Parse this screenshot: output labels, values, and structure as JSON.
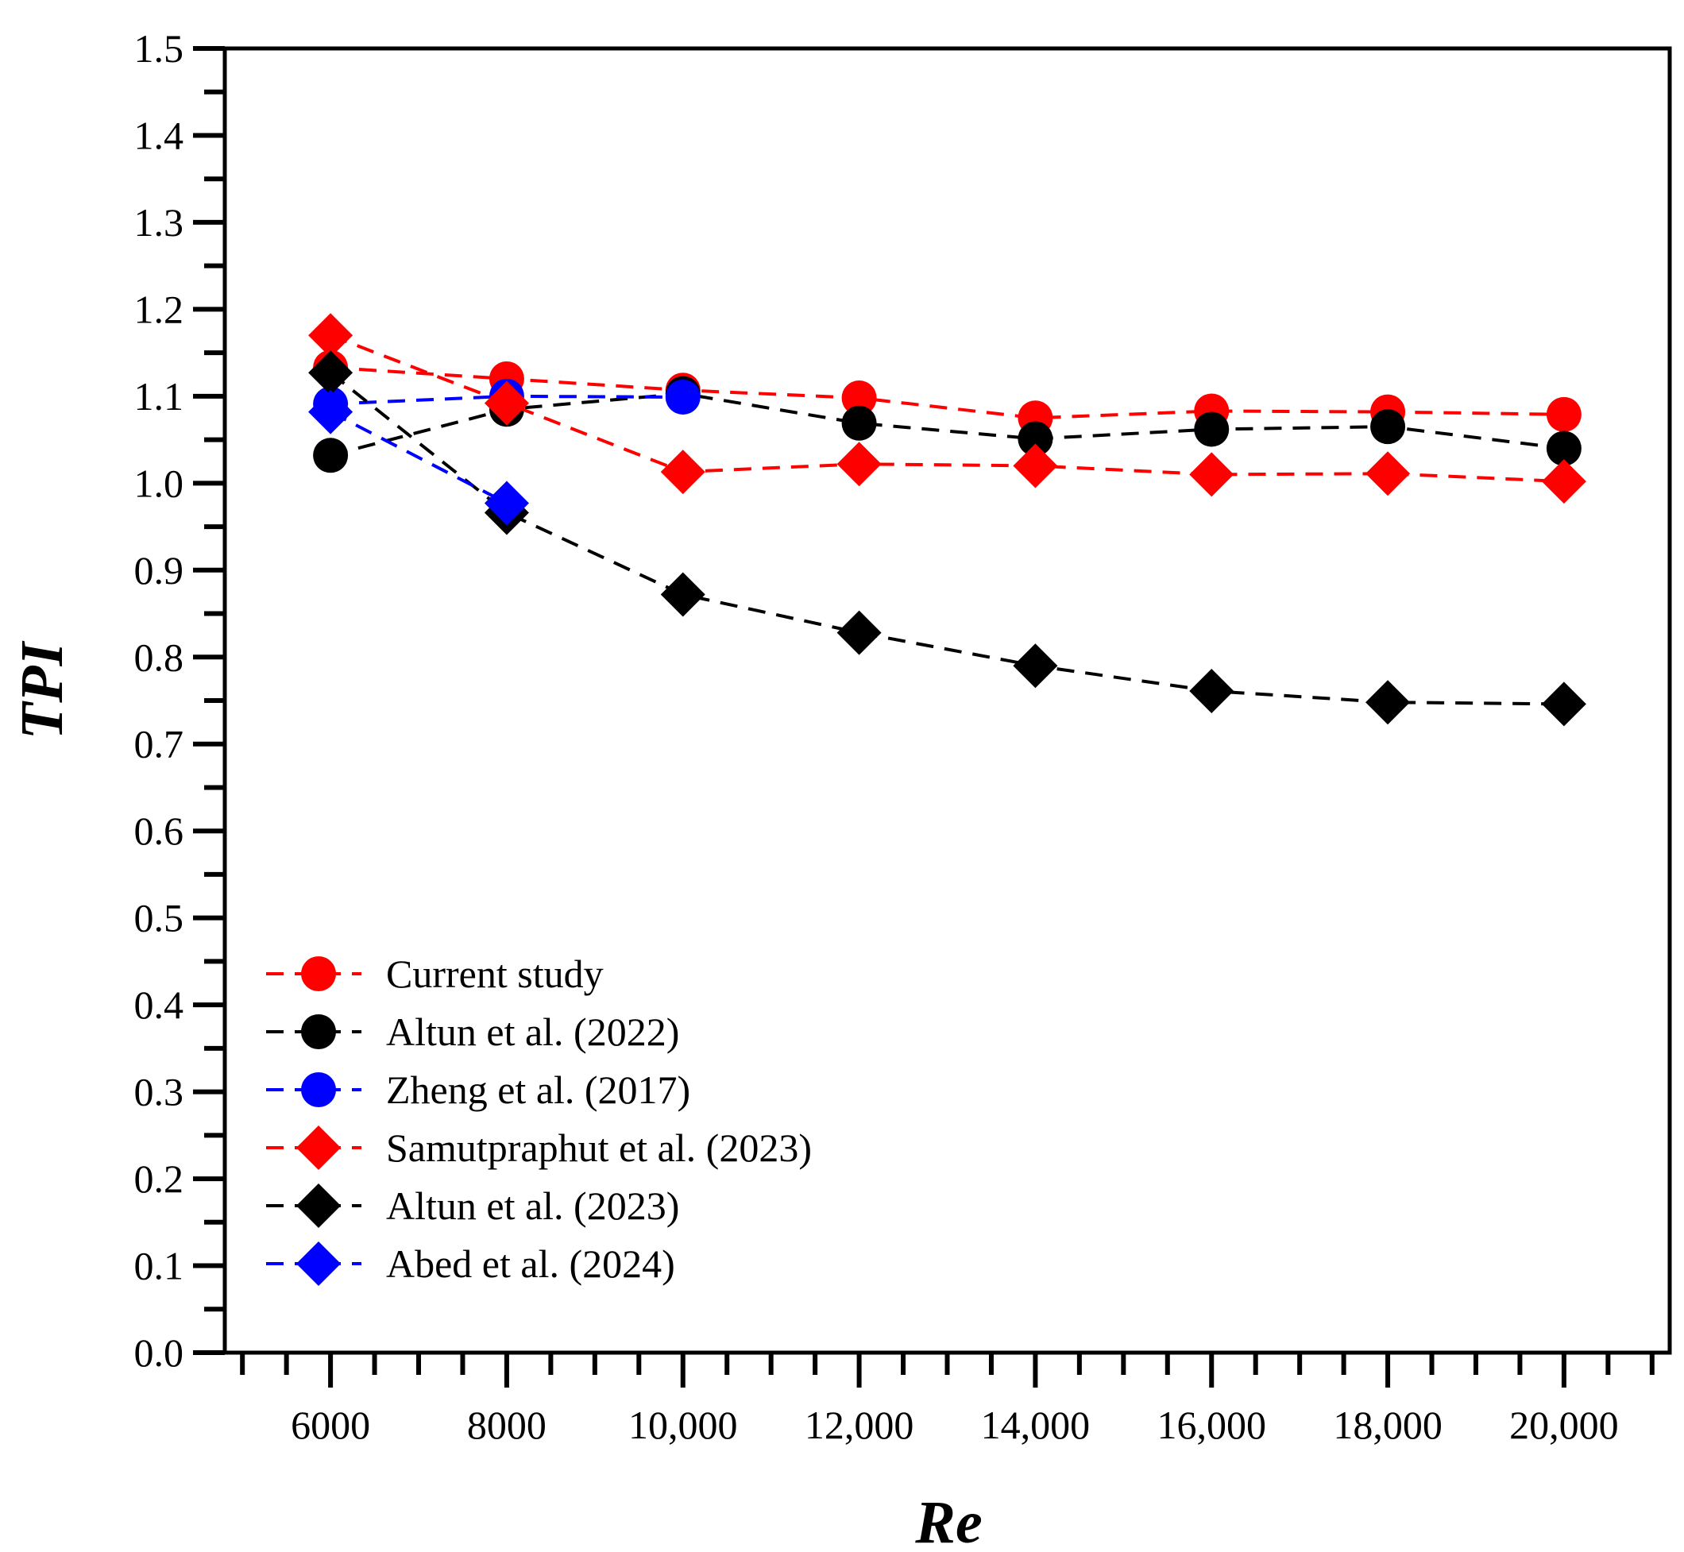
{
  "chart_data": {
    "type": "line",
    "title": "",
    "xlabel": "Re",
    "ylabel": "TPI",
    "xlim": [
      4800,
      21200
    ],
    "ylim": [
      0.0,
      1.5
    ],
    "x_ticks": [
      6000,
      8000,
      10000,
      12000,
      14000,
      16000,
      18000,
      20000
    ],
    "x_tick_labels": [
      "6000",
      "8000",
      "10,000",
      "12,000",
      "14,000",
      "16,000",
      "18,000",
      "20,000"
    ],
    "y_ticks": [
      0.0,
      0.1,
      0.2,
      0.3,
      0.4,
      0.5,
      0.6,
      0.7,
      0.8,
      0.9,
      1.0,
      1.1,
      1.2,
      1.3,
      1.4,
      1.5
    ],
    "y_tick_labels": [
      "0.0",
      "0.1",
      "0.2",
      "0.3",
      "0.4",
      "0.5",
      "0.6",
      "0.7",
      "0.8",
      "0.9",
      "1.0",
      "1.1",
      "1.2",
      "1.3",
      "1.4",
      "1.5"
    ],
    "grid": false,
    "legend_position": "lower-left",
    "series": [
      {
        "name": "Current study",
        "color": "#ff0000",
        "marker": "circle",
        "x": [
          6000,
          8000,
          10000,
          12000,
          14000,
          16000,
          18000,
          20000
        ],
        "y": [
          1.133,
          1.12,
          1.107,
          1.098,
          1.075,
          1.083,
          1.082,
          1.079
        ]
      },
      {
        "name": "Altun et al. (2022)",
        "color": "#000000",
        "marker": "circle",
        "x": [
          6000,
          8000,
          10000,
          12000,
          14000,
          16000,
          18000,
          20000
        ],
        "y": [
          1.032,
          1.085,
          1.103,
          1.069,
          1.051,
          1.062,
          1.065,
          1.04
        ]
      },
      {
        "name": "Zheng et al. (2017)",
        "color": "#0000ff",
        "marker": "circle",
        "x": [
          6000,
          8000,
          10000
        ],
        "y": [
          1.091,
          1.1,
          1.099
        ]
      },
      {
        "name": "Samutpraphut et al. (2023)",
        "color": "#ff0000",
        "marker": "diamond",
        "x": [
          6000,
          8000,
          10000,
          12000,
          14000,
          16000,
          18000,
          20000
        ],
        "y": [
          1.17,
          1.092,
          1.013,
          1.022,
          1.02,
          1.01,
          1.011,
          1.002
        ]
      },
      {
        "name": "Altun et al. (2023)",
        "color": "#000000",
        "marker": "diamond",
        "x": [
          6000,
          8000,
          10000,
          12000,
          14000,
          16000,
          18000,
          20000
        ],
        "y": [
          1.127,
          0.966,
          0.872,
          0.828,
          0.79,
          0.761,
          0.748,
          0.746
        ]
      },
      {
        "name": "Abed et al. (2024)",
        "color": "#0000ff",
        "marker": "diamond",
        "x": [
          6000,
          8000
        ],
        "y": [
          1.082,
          0.977
        ]
      }
    ]
  }
}
